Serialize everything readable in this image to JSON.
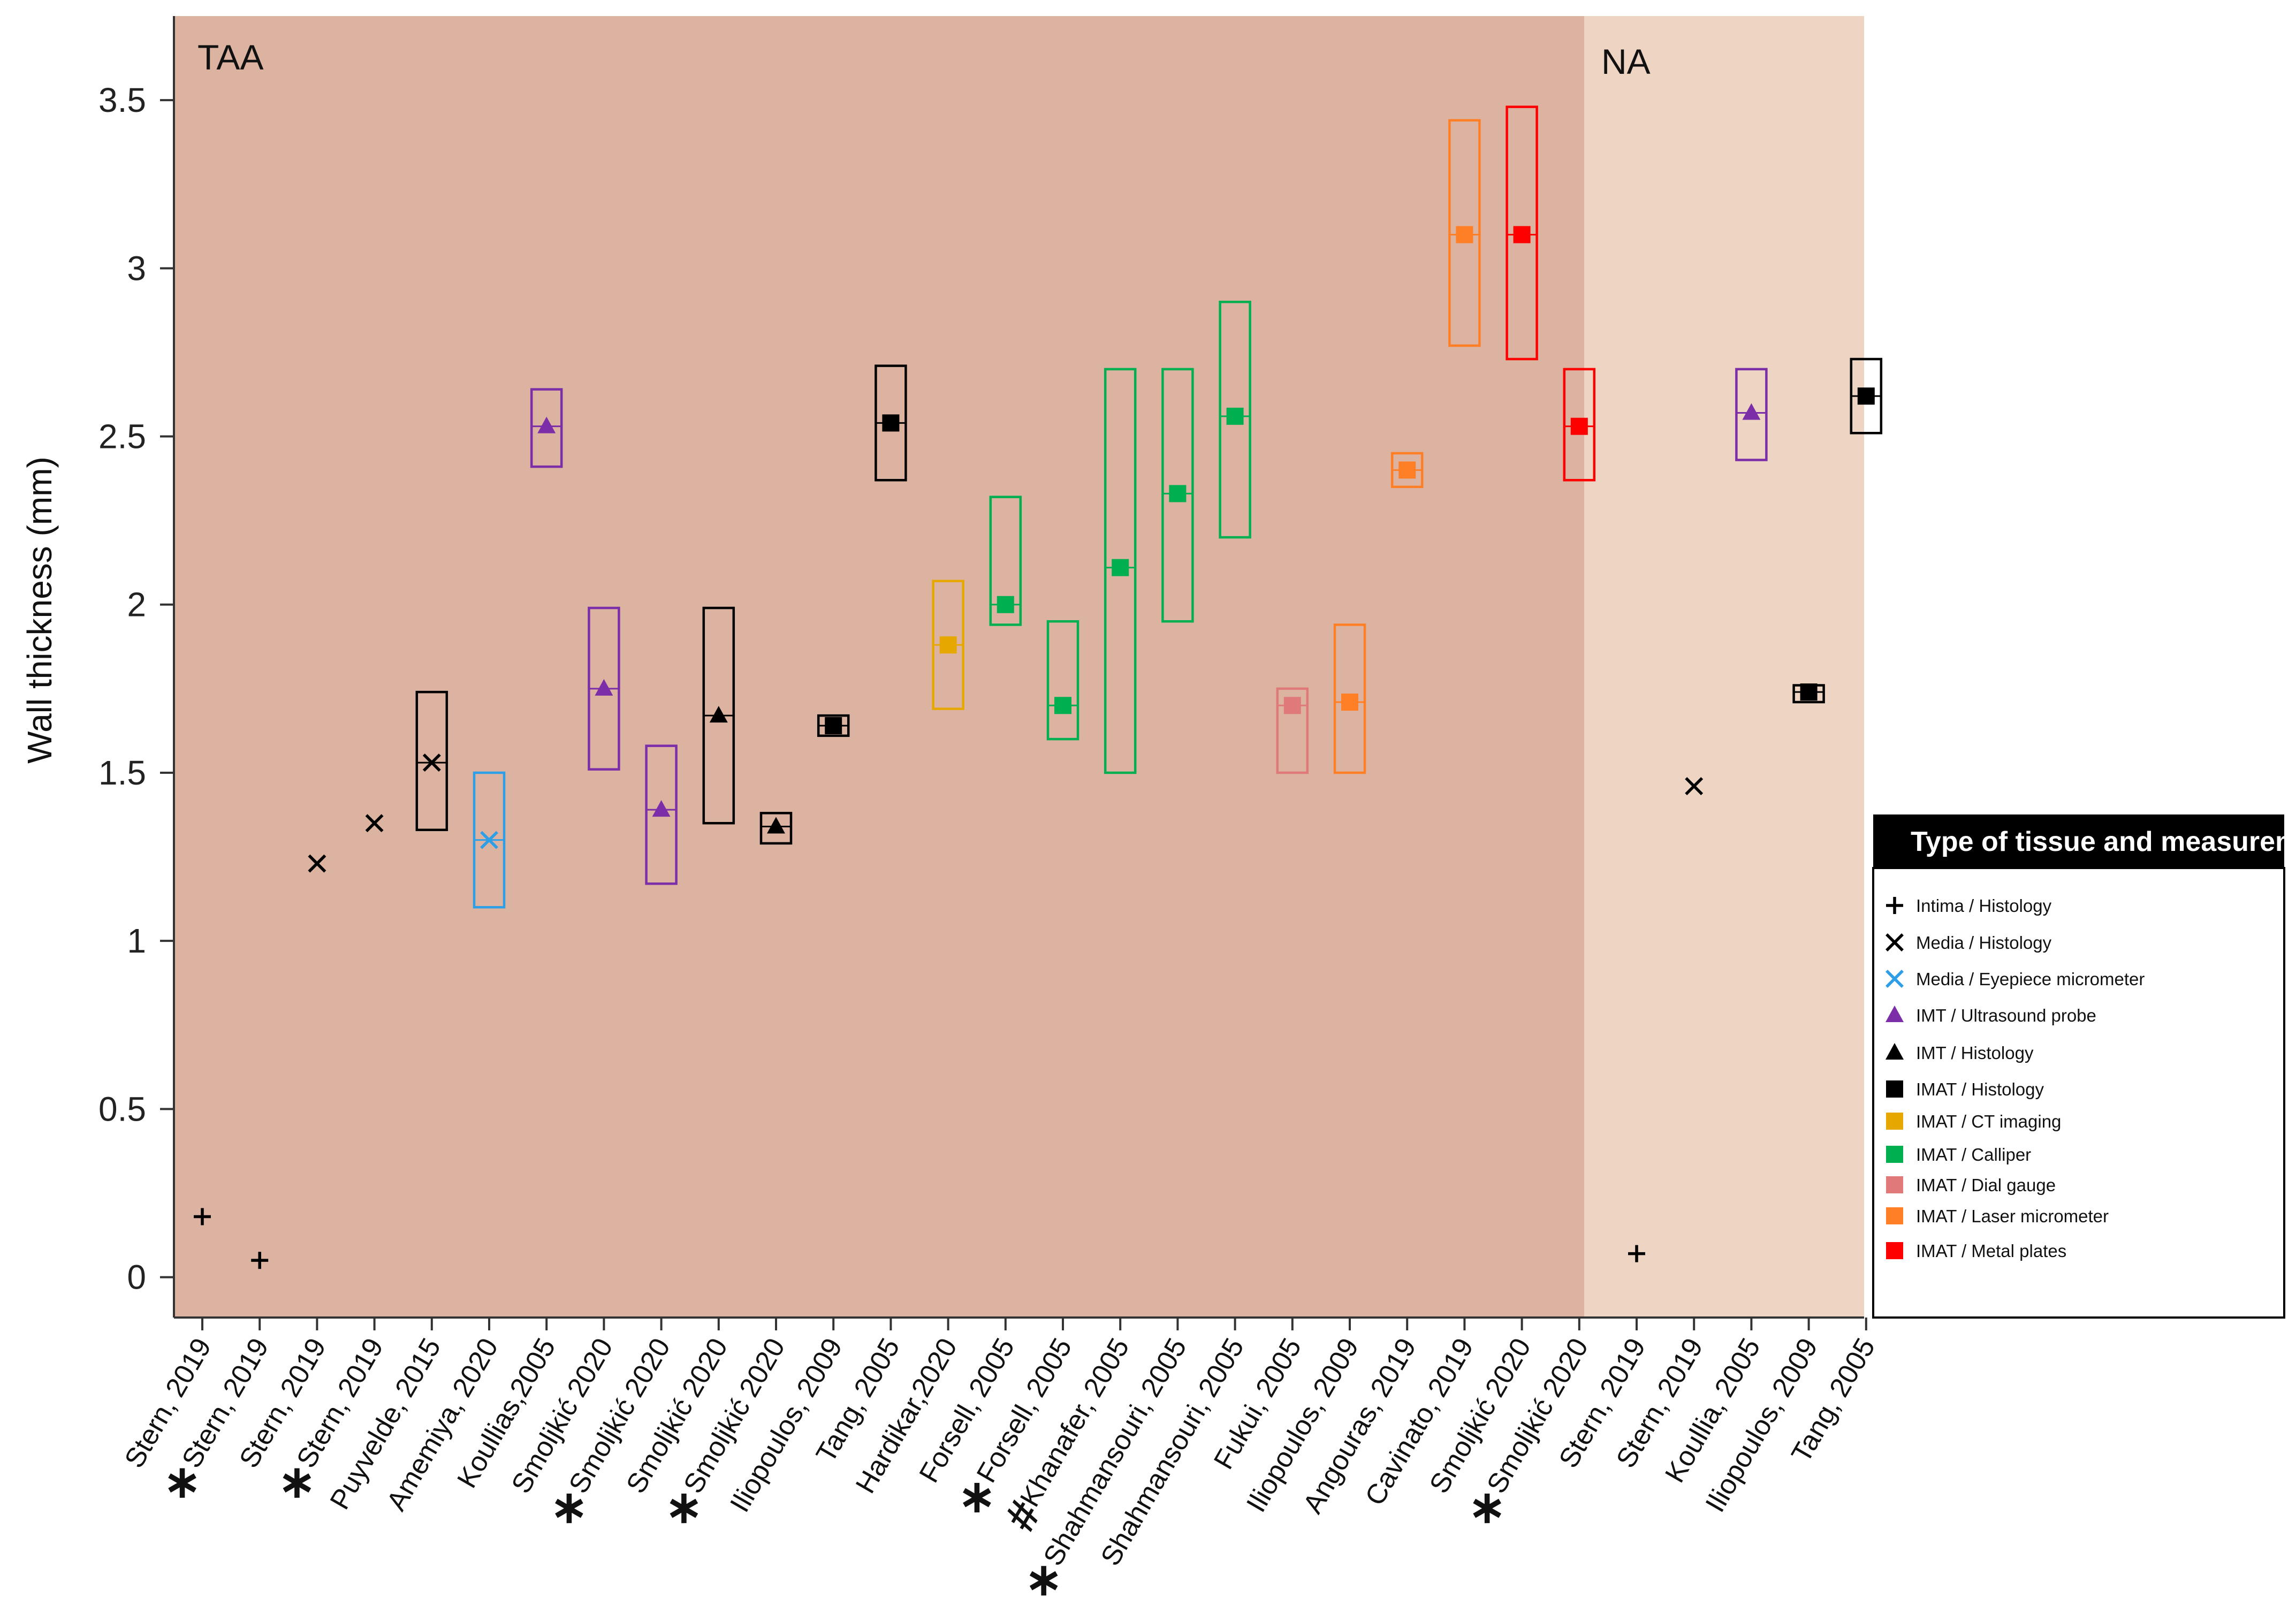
{
  "chart_data": {
    "type": "scatter",
    "ylabel": "Wall thickness (mm)",
    "ylim": [
      -0.12,
      3.75
    ],
    "yticks": [
      0,
      0.5,
      1,
      1.5,
      2,
      2.5,
      3,
      3.5
    ],
    "ytick_labels": [
      "0",
      "0.5",
      "1",
      "1.5",
      "2",
      "2.5",
      "3",
      "3.5"
    ],
    "regions": [
      {
        "name": "TAA",
        "label": "TAA",
        "from_index": 0,
        "to_index": 24,
        "color": "#dcb3a1"
      },
      {
        "name": "NA",
        "label": "NA",
        "from_index": 25,
        "to_index": 29,
        "color": "#eed4c3"
      }
    ],
    "categories": [
      {
        "label": "Stern, 2019",
        "star": false,
        "hash": false,
        "type": "intima-hist",
        "value": 0.18,
        "low": null,
        "high": null
      },
      {
        "label": "Stern, 2019",
        "star": true,
        "hash": false,
        "type": "intima-hist",
        "value": 0.05,
        "low": null,
        "high": null
      },
      {
        "label": "Stern, 2019",
        "star": false,
        "hash": false,
        "type": "media-hist",
        "value": 1.23,
        "low": null,
        "high": null
      },
      {
        "label": "Stern, 2019",
        "star": true,
        "hash": false,
        "type": "media-hist",
        "value": 1.35,
        "low": null,
        "high": null
      },
      {
        "label": "Puyvelde, 2015",
        "star": false,
        "hash": false,
        "type": "media-hist",
        "value": 1.53,
        "low": 1.33,
        "high": 1.74
      },
      {
        "label": "Amemiya, 2020",
        "star": false,
        "hash": false,
        "type": "media-eyepiece",
        "value": 1.3,
        "low": 1.1,
        "high": 1.5
      },
      {
        "label": "Koullias,2005",
        "star": false,
        "hash": false,
        "type": "imt-us",
        "value": 2.53,
        "low": 2.41,
        "high": 2.64
      },
      {
        "label": "Smoljkić 2020",
        "star": false,
        "hash": false,
        "type": "imt-us",
        "value": 1.75,
        "low": 1.51,
        "high": 1.99
      },
      {
        "label": "Smoljkić 2020",
        "star": true,
        "hash": false,
        "type": "imt-us",
        "value": 1.39,
        "low": 1.17,
        "high": 1.58
      },
      {
        "label": "Smoljkić 2020",
        "star": false,
        "hash": false,
        "type": "imt-hist",
        "value": 1.67,
        "low": 1.35,
        "high": 1.99
      },
      {
        "label": "Smoljkić 2020",
        "star": true,
        "hash": false,
        "type": "imt-hist",
        "value": 1.34,
        "low": 1.29,
        "high": 1.38
      },
      {
        "label": "Iliopoulos, 2009",
        "star": false,
        "hash": false,
        "type": "imat-hist",
        "value": 1.64,
        "low": 1.61,
        "high": 1.67
      },
      {
        "label": "Tang, 2005",
        "star": false,
        "hash": false,
        "type": "imat-hist",
        "value": 2.54,
        "low": 2.37,
        "high": 2.71
      },
      {
        "label": "Hardikar,2020",
        "star": false,
        "hash": false,
        "type": "imat-ct",
        "value": 1.88,
        "low": 1.69,
        "high": 2.07
      },
      {
        "label": "Forsell, 2005",
        "star": false,
        "hash": false,
        "type": "imat-calliper",
        "value": 2.0,
        "low": 1.94,
        "high": 2.32
      },
      {
        "label": "Forsell, 2005",
        "star": true,
        "hash": false,
        "type": "imat-calliper",
        "value": 1.7,
        "low": 1.6,
        "high": 1.95
      },
      {
        "label": "Khanafer, 2005",
        "star": false,
        "hash": true,
        "type": "imat-calliper",
        "value": 2.11,
        "low": 1.5,
        "high": 2.7
      },
      {
        "label": "Shahmansouri, 2005",
        "star": true,
        "hash": false,
        "type": "imat-calliper",
        "value": 2.33,
        "low": 1.95,
        "high": 2.7
      },
      {
        "label": "Shahmansouri, 2005",
        "star": false,
        "hash": false,
        "type": "imat-calliper",
        "value": 2.56,
        "low": 2.2,
        "high": 2.9
      },
      {
        "label": "Fukui, 2005",
        "star": false,
        "hash": false,
        "type": "imat-dial",
        "value": 1.7,
        "low": 1.5,
        "high": 1.75
      },
      {
        "label": "Iliopoulos, 2009",
        "star": false,
        "hash": false,
        "type": "imat-laser",
        "value": 1.71,
        "low": 1.5,
        "high": 1.94
      },
      {
        "label": "Angouras, 2019",
        "star": false,
        "hash": false,
        "type": "imat-laser",
        "value": 2.4,
        "low": 2.35,
        "high": 2.45
      },
      {
        "label": "Cavinato, 2019",
        "star": false,
        "hash": false,
        "type": "imat-laser",
        "value": 3.1,
        "low": 2.77,
        "high": 3.44
      },
      {
        "label": "Smoljkić 2020",
        "star": false,
        "hash": false,
        "type": "imat-metal",
        "value": 3.1,
        "low": 2.73,
        "high": 3.48
      },
      {
        "label": "Smoljkić 2020",
        "star": true,
        "hash": false,
        "type": "imat-metal",
        "value": 2.53,
        "low": 2.37,
        "high": 2.7
      },
      {
        "label": "Stern, 2019",
        "star": false,
        "hash": false,
        "type": "intima-hist",
        "value": 0.07,
        "low": null,
        "high": null
      },
      {
        "label": "Stern, 2019",
        "star": false,
        "hash": false,
        "type": "media-hist",
        "value": 1.46,
        "low": null,
        "high": null
      },
      {
        "label": "Koullia, 2005",
        "star": false,
        "hash": false,
        "type": "imt-us",
        "value": 2.57,
        "low": 2.43,
        "high": 2.7
      },
      {
        "label": "Iliopoulos, 2009",
        "star": false,
        "hash": false,
        "type": "imat-hist",
        "value": 1.74,
        "low": 1.71,
        "high": 1.76
      },
      {
        "label": "Tang, 2005",
        "star": false,
        "hash": false,
        "type": "imat-hist",
        "value": 2.62,
        "low": 2.51,
        "high": 2.73
      }
    ],
    "legend": {
      "title": "Type of tissue and measurement",
      "placement": "right",
      "entries": [
        {
          "key": "intima-hist",
          "label": "Intima / Histology",
          "marker": "plus",
          "color": "#000000"
        },
        {
          "key": "media-hist",
          "label": "Media / Histology",
          "marker": "x",
          "color": "#000000"
        },
        {
          "key": "media-eyepiece",
          "label": "Media / Eyepiece micrometer",
          "marker": "x",
          "color": "#2e9fe6"
        },
        {
          "key": "imt-us",
          "label": "IMT / Ultrasound probe",
          "marker": "triangle",
          "color": "#7b2ea8"
        },
        {
          "key": "imt-hist",
          "label": "IMT / Histology",
          "marker": "triangle",
          "color": "#000000"
        },
        {
          "key": "imat-hist",
          "label": "IMAT / Histology",
          "marker": "square",
          "color": "#000000"
        },
        {
          "key": "imat-ct",
          "label": "IMAT / CT imaging",
          "marker": "square",
          "color": "#e6a800"
        },
        {
          "key": "imat-calliper",
          "label": "IMAT / Calliper",
          "marker": "square",
          "color": "#00b050"
        },
        {
          "key": "imat-dial",
          "label": "IMAT / Dial gauge",
          "marker": "square",
          "color": "#e07a7a"
        },
        {
          "key": "imat-laser",
          "label": "IMAT / Laser micrometer",
          "marker": "square",
          "color": "#ff7f27"
        },
        {
          "key": "imat-metal",
          "label": "IMAT / Metal plates",
          "marker": "square",
          "color": "#ff0000"
        }
      ]
    }
  }
}
